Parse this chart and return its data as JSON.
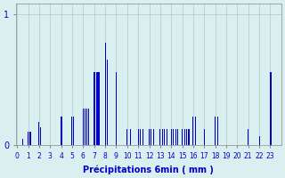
{
  "xlabel": "Précipitations 6min ( mm )",
  "background_color": "#daf0f0",
  "bar_color": "#0000cc",
  "grid_color": "#b0c8c8",
  "ylim": [
    0,
    1.08
  ],
  "yticks": [
    0,
    1
  ],
  "xlim": [
    -1,
    240
  ],
  "bar_width": 0.85,
  "values": [
    0.0,
    0.0,
    0.0,
    0.0,
    0.0,
    0.05,
    0.0,
    0.0,
    0.0,
    0.0,
    0.1,
    0.0,
    0.1,
    0.0,
    0.0,
    0.0,
    0.0,
    0.0,
    0.0,
    0.0,
    0.18,
    0.14,
    0.0,
    0.0,
    0.0,
    0.0,
    0.0,
    0.0,
    0.0,
    0.0,
    0.0,
    0.0,
    0.0,
    0.0,
    0.0,
    0.0,
    0.0,
    0.0,
    0.0,
    0.0,
    0.22,
    0.22,
    0.0,
    0.0,
    0.0,
    0.0,
    0.0,
    0.0,
    0.0,
    0.0,
    0.22,
    0.22,
    0.0,
    0.0,
    0.0,
    0.0,
    0.0,
    0.0,
    0.0,
    0.0,
    0.28,
    0.0,
    0.28,
    0.28,
    0.0,
    0.28,
    0.0,
    0.0,
    0.0,
    0.0,
    0.56,
    0.56,
    0.56,
    0.56,
    0.56,
    0.56,
    0.0,
    0.0,
    0.0,
    0.0,
    0.78,
    0.0,
    0.65,
    0.0,
    0.0,
    0.0,
    0.0,
    0.0,
    0.0,
    0.0,
    0.56,
    0.0,
    0.0,
    0.0,
    0.0,
    0.0,
    0.0,
    0.0,
    0.0,
    0.0,
    0.12,
    0.0,
    0.0,
    0.12,
    0.0,
    0.0,
    0.0,
    0.0,
    0.0,
    0.0,
    0.12,
    0.0,
    0.12,
    0.0,
    0.12,
    0.0,
    0.0,
    0.0,
    0.0,
    0.0,
    0.12,
    0.0,
    0.12,
    0.0,
    0.12,
    0.0,
    0.0,
    0.0,
    0.0,
    0.0,
    0.12,
    0.0,
    0.12,
    0.0,
    0.12,
    0.0,
    0.12,
    0.0,
    0.0,
    0.0,
    0.12,
    0.0,
    0.12,
    0.0,
    0.12,
    0.0,
    0.12,
    0.0,
    0.0,
    0.0,
    0.12,
    0.0,
    0.12,
    0.0,
    0.12,
    0.0,
    0.12,
    0.0,
    0.0,
    0.0,
    0.22,
    0.0,
    0.22,
    0.0,
    0.0,
    0.0,
    0.0,
    0.0,
    0.0,
    0.0,
    0.12,
    0.0,
    0.0,
    0.0,
    0.0,
    0.0,
    0.0,
    0.0,
    0.0,
    0.0,
    0.22,
    0.0,
    0.22,
    0.0,
    0.0,
    0.0,
    0.0,
    0.0,
    0.0,
    0.0,
    0.0,
    0.0,
    0.0,
    0.0,
    0.0,
    0.0,
    0.0,
    0.0,
    0.0,
    0.0,
    0.0,
    0.0,
    0.0,
    0.0,
    0.0,
    0.0,
    0.0,
    0.0,
    0.0,
    0.0,
    0.12,
    0.0,
    0.0,
    0.0,
    0.0,
    0.0,
    0.0,
    0.0,
    0.0,
    0.0,
    0.07,
    0.0,
    0.0,
    0.0,
    0.0,
    0.0,
    0.0,
    0.0,
    0.0,
    0.0,
    0.56,
    0.56,
    0.0,
    0.0,
    0.0,
    0.0,
    0.0,
    0.0,
    0.0,
    0.0
  ],
  "hour_tick_positions": [
    0,
    10,
    20,
    30,
    40,
    50,
    60,
    70,
    80,
    90,
    100,
    110,
    120,
    130,
    140,
    150,
    160,
    170,
    180,
    190,
    200,
    210,
    220,
    230
  ],
  "hour_tick_labels": [
    "0",
    "1",
    "2",
    "3",
    "4",
    "5",
    "6",
    "7",
    "8",
    "9",
    "10",
    "11",
    "12",
    "13",
    "14",
    "15",
    "16",
    "17",
    "18",
    "19",
    "20",
    "21",
    "22",
    "23"
  ]
}
